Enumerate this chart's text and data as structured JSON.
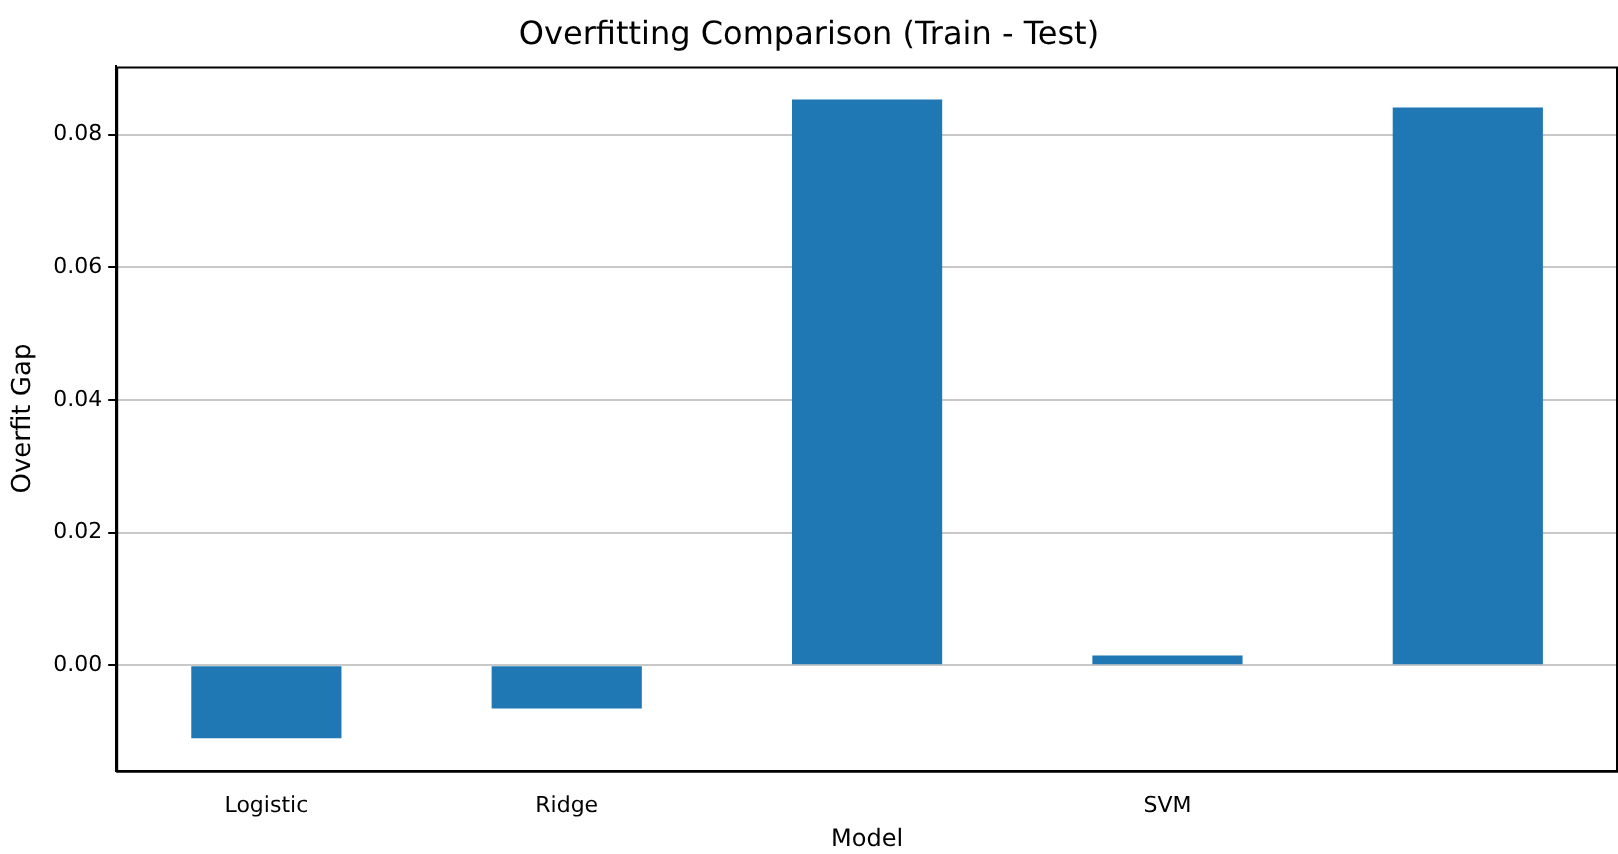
{
  "chart_data": {
    "type": "bar",
    "title": "Overfitting Comparison (Train - Test)",
    "xlabel": "Model",
    "ylabel": "Overfit Gap",
    "categories": [
      "Logistic",
      "Ridge",
      null,
      "SVM",
      null
    ],
    "values": [
      -0.011,
      -0.0065,
      0.0853,
      0.0015,
      0.0841
    ],
    "color": "#1f77b4",
    "ylim": [
      -0.0159,
      0.0903
    ],
    "yticks": [
      {
        "value": 0,
        "label": "0.00"
      },
      {
        "value": 0.02,
        "label": "0.02"
      },
      {
        "value": 0.04,
        "label": "0.04"
      },
      {
        "value": 0.06,
        "label": "0.06"
      },
      {
        "value": 0.08,
        "label": "0.08"
      }
    ],
    "grid": "y",
    "legend": false
  }
}
